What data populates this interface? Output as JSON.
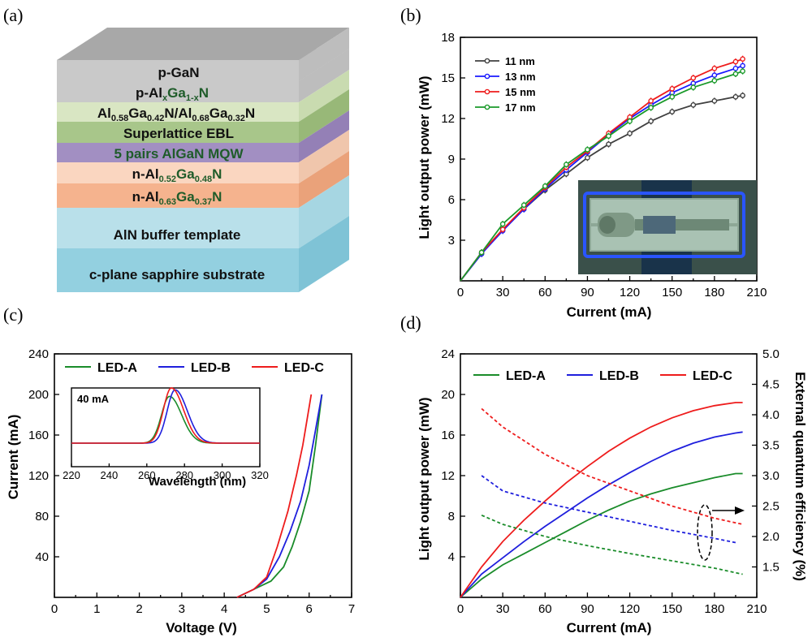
{
  "panel_labels": {
    "a": "(a)",
    "b": "(b)",
    "c": "(c)",
    "d": "(d)"
  },
  "structure": {
    "layers": [
      {
        "name": "p-GaN",
        "color": "#c9c9c9",
        "side": "#bdbdbd",
        "top": "#a8a8a8"
      },
      {
        "name": "p-AlGaN",
        "color": "#d9e6c3",
        "side": "#c9dbb0"
      },
      {
        "name": "EBL",
        "color": "#a8c68a",
        "side": "#98b878"
      },
      {
        "name": "MQW",
        "color": "#a28fc2",
        "side": "#9480b6"
      },
      {
        "name": "n-AlGaN-52",
        "color": "#fad6c0",
        "side": "#f0c6ac"
      },
      {
        "name": "n-AlGaN-63",
        "color": "#f5b38e",
        "side": "#eaa27a"
      },
      {
        "name": "AlN",
        "color": "#b9e0ea",
        "side": "#a6d6e2"
      },
      {
        "name": "sapphire",
        "color": "#93d0e0",
        "side": "#7fc3d6"
      }
    ],
    "labels": {
      "p_gan": "p-GaN",
      "p_algan_pre": "p-Al",
      "p_algan_x": "x",
      "p_algan_ga": "Ga",
      "p_algan_1x": "1-x",
      "p_algan_n": "N",
      "ebl_al1": "Al",
      "ebl_s1": "0.58",
      "ebl_ga1": "Ga",
      "ebl_s2": "0.42",
      "ebl_mid": "N/Al",
      "ebl_s3": "0.68",
      "ebl_ga2": "Ga",
      "ebl_s4": "0.32",
      "ebl_n": "N",
      "ebl2": "Superlattice EBL",
      "mqw": "5 pairs AlGaN MQW",
      "n1_pre": "n-Al",
      "n1_s1": "0.52",
      "n1_ga": "Ga",
      "n1_s2": "0.48",
      "n1_n": "N",
      "n2_pre": "n-Al",
      "n2_s1": "0.63",
      "n2_ga": "Ga",
      "n2_s2": "0.37",
      "n2_n": "N",
      "aln": "AlN buffer template",
      "sapphire": "c-plane sapphire substrate"
    }
  },
  "chart_data": [
    {
      "id": "b",
      "type": "line",
      "xlabel": "Current (mA)",
      "ylabel": "Light output power (mW)",
      "xlim": [
        0,
        210
      ],
      "ylim": [
        0,
        18
      ],
      "xticks": [
        0,
        30,
        60,
        90,
        120,
        150,
        180,
        210
      ],
      "yticks": [
        3,
        6,
        9,
        12,
        15,
        18
      ],
      "legend_position": "top-left",
      "x": [
        0,
        15,
        30,
        45,
        60,
        75,
        90,
        105,
        120,
        135,
        150,
        165,
        180,
        195,
        200
      ],
      "series": [
        {
          "name": "11 nm",
          "color": "#404040",
          "values": [
            0,
            2.0,
            3.8,
            5.3,
            6.7,
            7.9,
            9.1,
            10.1,
            10.9,
            11.8,
            12.5,
            13.0,
            13.3,
            13.6,
            13.7
          ]
        },
        {
          "name": "13 nm",
          "color": "#1a1aff",
          "values": [
            0,
            2.0,
            3.7,
            5.3,
            6.8,
            8.2,
            9.5,
            10.8,
            12.0,
            13.0,
            13.9,
            14.6,
            15.2,
            15.7,
            15.9
          ]
        },
        {
          "name": "15 nm",
          "color": "#ee1c1c",
          "values": [
            0,
            2.1,
            3.8,
            5.4,
            6.9,
            8.4,
            9.6,
            10.9,
            12.1,
            13.3,
            14.2,
            15.0,
            15.7,
            16.2,
            16.4
          ]
        },
        {
          "name": "17 nm",
          "color": "#1a9a2a",
          "values": [
            0,
            2.1,
            4.2,
            5.6,
            7.0,
            8.6,
            9.7,
            10.7,
            11.8,
            12.8,
            13.6,
            14.3,
            14.8,
            15.3,
            15.5
          ]
        }
      ]
    },
    {
      "id": "c",
      "type": "line",
      "xlabel": "Voltage (V)",
      "ylabel": "Current (mA)",
      "xlim": [
        0,
        7
      ],
      "ylim": [
        0,
        240
      ],
      "xticks": [
        0,
        1,
        2,
        3,
        4,
        5,
        6,
        7
      ],
      "yticks": [
        40,
        80,
        120,
        160,
        200,
        240
      ],
      "legend_position": "top",
      "series": [
        {
          "name": "LED-A",
          "color": "#1a8c2a",
          "x": [
            4.3,
            4.7,
            5.1,
            5.4,
            5.6,
            5.8,
            6.0,
            6.15,
            6.3
          ],
          "values": [
            0,
            8,
            16,
            30,
            50,
            75,
            105,
            150,
            200
          ]
        },
        {
          "name": "LED-B",
          "color": "#1f1fdd",
          "x": [
            4.3,
            4.7,
            5.0,
            5.3,
            5.55,
            5.8,
            6.0,
            6.15,
            6.3
          ],
          "values": [
            0,
            8,
            18,
            40,
            65,
            95,
            130,
            165,
            200
          ]
        },
        {
          "name": "LED-C",
          "color": "#ee1c1c",
          "x": [
            4.3,
            4.7,
            5.0,
            5.25,
            5.5,
            5.7,
            5.85,
            5.95,
            6.05
          ],
          "values": [
            0,
            8,
            20,
            50,
            85,
            120,
            150,
            175,
            200
          ]
        }
      ],
      "inset": {
        "label": "40 mA",
        "xlabel": "Wavelength (nm)",
        "xlim": [
          220,
          320
        ],
        "xticks": [
          220,
          240,
          260,
          280,
          300,
          320
        ],
        "series": [
          {
            "name": "LED-A",
            "color": "#1a8c2a",
            "peak_x": 272,
            "peak": 1.0
          },
          {
            "name": "LED-B",
            "color": "#1f1fdd",
            "peak_x": 275,
            "peak": 1.14
          },
          {
            "name": "LED-C",
            "color": "#ee1c1c",
            "peak_x": 273,
            "peak": 1.18
          }
        ]
      }
    },
    {
      "id": "d",
      "type": "line",
      "xlabel": "Current (mA)",
      "ylabel": "Light output power (mW)",
      "y2label": "External quantum efficiency (%)",
      "xlim": [
        0,
        210
      ],
      "ylim": [
        0,
        24
      ],
      "y2lim": [
        1.0,
        5.0
      ],
      "xticks": [
        0,
        30,
        60,
        90,
        120,
        150,
        180,
        210
      ],
      "yticks": [
        4,
        8,
        12,
        16,
        20,
        24
      ],
      "y2ticks": [
        1.5,
        2.0,
        2.5,
        3.0,
        3.5,
        4.0,
        4.5,
        5.0
      ],
      "legend_position": "top",
      "x": [
        0,
        15,
        30,
        45,
        60,
        75,
        90,
        105,
        120,
        135,
        150,
        165,
        180,
        195,
        200
      ],
      "series": [
        {
          "name": "LED-A",
          "color": "#1a8c2a",
          "values": [
            0,
            1.8,
            3.2,
            4.3,
            5.4,
            6.5,
            7.6,
            8.6,
            9.5,
            10.2,
            10.8,
            11.3,
            11.8,
            12.2,
            12.2
          ]
        },
        {
          "name": "LED-B",
          "color": "#1f1fdd",
          "values": [
            0,
            2.3,
            3.9,
            5.5,
            7.0,
            8.4,
            9.8,
            11.1,
            12.3,
            13.4,
            14.4,
            15.2,
            15.8,
            16.2,
            16.3
          ]
        },
        {
          "name": "LED-C",
          "color": "#ee1c1c",
          "values": [
            0,
            3.0,
            5.5,
            7.6,
            9.5,
            11.3,
            12.9,
            14.4,
            15.7,
            16.8,
            17.7,
            18.4,
            18.9,
            19.2,
            19.2
          ]
        }
      ],
      "eqe_series": [
        {
          "name": "LED-A",
          "color": "#1a8c2a",
          "x": [
            15,
            30,
            60,
            90,
            120,
            150,
            180,
            200
          ],
          "values": [
            2.35,
            2.2,
            2.0,
            1.85,
            1.72,
            1.6,
            1.48,
            1.38
          ]
        },
        {
          "name": "LED-B",
          "color": "#1f1fdd",
          "x": [
            15,
            30,
            60,
            90,
            120,
            150,
            180,
            195
          ],
          "values": [
            3.0,
            2.75,
            2.55,
            2.4,
            2.25,
            2.1,
            1.97,
            1.9
          ]
        },
        {
          "name": "LED-C",
          "color": "#ee1c1c",
          "x": [
            15,
            30,
            60,
            90,
            120,
            150,
            180,
            200
          ],
          "values": [
            4.1,
            3.8,
            3.35,
            3.0,
            2.75,
            2.5,
            2.3,
            2.2
          ]
        }
      ]
    }
  ]
}
